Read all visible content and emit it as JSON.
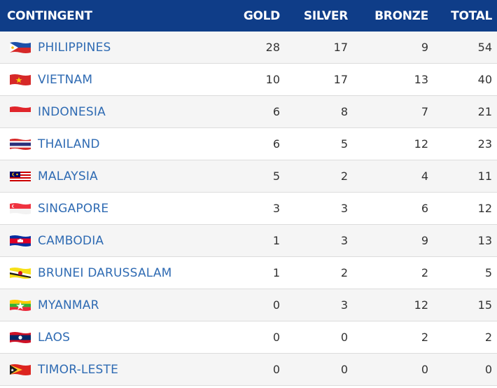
{
  "header": {
    "contingent": "CONTINGENT",
    "gold": "GOLD",
    "silver": "SILVER",
    "bronze": "BRONZE",
    "total": "TOTAL"
  },
  "rows": [
    {
      "name": "PHILIPPINES",
      "gold": "28",
      "silver": "17",
      "bronze": "9",
      "total": "54",
      "flag": "philippines-flag-icon"
    },
    {
      "name": "VIETNAM",
      "gold": "10",
      "silver": "17",
      "bronze": "13",
      "total": "40",
      "flag": "vietnam-flag-icon"
    },
    {
      "name": "INDONESIA",
      "gold": "6",
      "silver": "8",
      "bronze": "7",
      "total": "21",
      "flag": "indonesia-flag-icon"
    },
    {
      "name": "THAILAND",
      "gold": "6",
      "silver": "5",
      "bronze": "12",
      "total": "23",
      "flag": "thailand-flag-icon"
    },
    {
      "name": "MALAYSIA",
      "gold": "5",
      "silver": "2",
      "bronze": "4",
      "total": "11",
      "flag": "malaysia-flag-icon"
    },
    {
      "name": "SINGAPORE",
      "gold": "3",
      "silver": "3",
      "bronze": "6",
      "total": "12",
      "flag": "singapore-flag-icon"
    },
    {
      "name": "CAMBODIA",
      "gold": "1",
      "silver": "3",
      "bronze": "9",
      "total": "13",
      "flag": "cambodia-flag-icon"
    },
    {
      "name": "BRUNEI DARUSSALAM",
      "gold": "1",
      "silver": "2",
      "bronze": "2",
      "total": "5",
      "flag": "brunei-flag-icon"
    },
    {
      "name": "MYANMAR",
      "gold": "0",
      "silver": "3",
      "bronze": "12",
      "total": "15",
      "flag": "myanmar-flag-icon"
    },
    {
      "name": "LAOS",
      "gold": "0",
      "silver": "0",
      "bronze": "2",
      "total": "2",
      "flag": "laos-flag-icon"
    },
    {
      "name": "TIMOR-LESTE",
      "gold": "0",
      "silver": "0",
      "bronze": "0",
      "total": "0",
      "flag": "timor-leste-flag-icon"
    }
  ],
  "colors": {
    "header_bg": "#0f3d88",
    "link_text": "#2f6bb3"
  }
}
